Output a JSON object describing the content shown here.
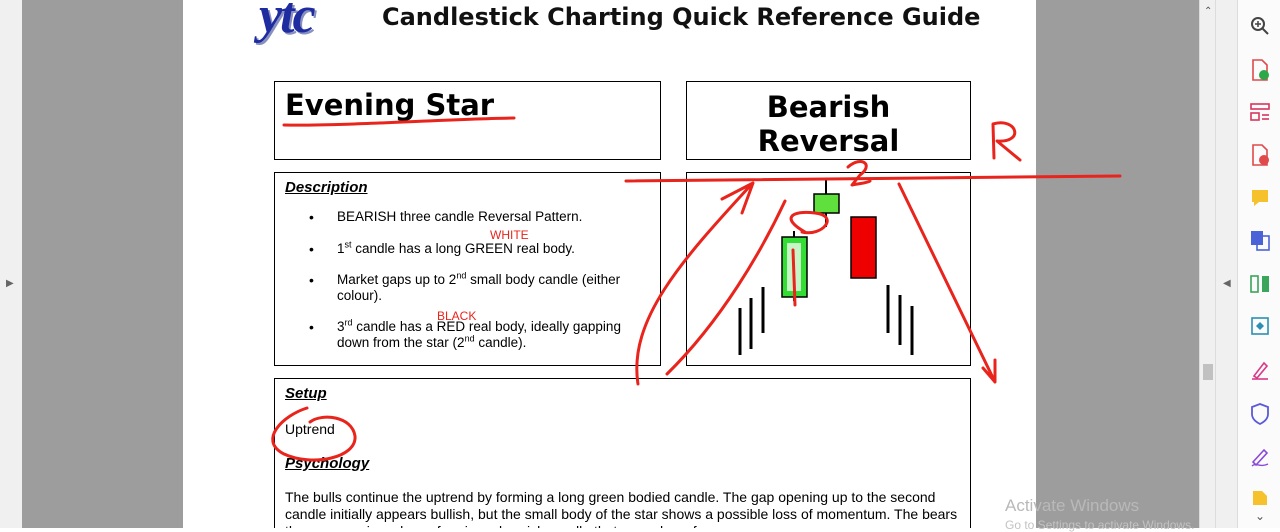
{
  "document": {
    "logo_text": "ytc",
    "title": "Candlestick Charting Quick Reference Guide",
    "pattern_name": "Evening Star",
    "pattern_type_line1": "Bearish",
    "pattern_type_line2": "Reversal",
    "description": {
      "heading": "Description",
      "bullet1": "BEARISH three candle Reversal Pattern.",
      "bullet2_pre": "1",
      "bullet2_sup": "st",
      "bullet2_post": " candle has a long GREEN real body.",
      "bullet3_pre": "Market gaps up to 2",
      "bullet3_sup": "nd",
      "bullet3_post": " small body candle (either colour).",
      "bullet4_pre": "3",
      "bullet4_sup": "rd",
      "bullet4_mid": " candle has a RED real body, ideally gapping down from the star (2",
      "bullet4_sup2": "nd",
      "bullet4_post": " candle).",
      "note_white": "WHITE",
      "note_black": "BLACK"
    },
    "setup": {
      "heading": "Setup",
      "text": "Uptrend"
    },
    "psychology": {
      "heading": "Psychology",
      "text": "The bulls continue the uptrend by forming a long green bodied candle. The gap opening up to the second candle initially appears bullish, but the small body of the star shows a possible loss of momentum. The bears then move prices down, forming a bearish candle that gaps down from..."
    },
    "ink_labels": {
      "r": "R",
      "two": "2",
      "one": "1"
    }
  },
  "chart": {
    "candles": [
      {
        "name": "first-candle",
        "color": "#22cc22",
        "body": "long green"
      },
      {
        "name": "star-candle",
        "color": "#33dd33",
        "body": "small"
      },
      {
        "name": "third-candle",
        "color": "#ee0000",
        "body": "red"
      }
    ]
  },
  "toolbar": {
    "items": [
      "zoom-icon",
      "export-pdf-icon",
      "organize-pages-icon",
      "create-pdf-icon",
      "comment-icon",
      "combine-files-icon",
      "compress-icon",
      "convert-icon",
      "fill-sign-icon",
      "protect-icon",
      "edit-icon",
      "more-tools-icon"
    ]
  },
  "watermark": {
    "line1": "Activate Windows",
    "line2": "Go to Settings to activate Windows."
  },
  "colors": {
    "ink": "#e8241c",
    "logo": "#1f2ca0",
    "viewer_bg": "#9d9d9d"
  }
}
